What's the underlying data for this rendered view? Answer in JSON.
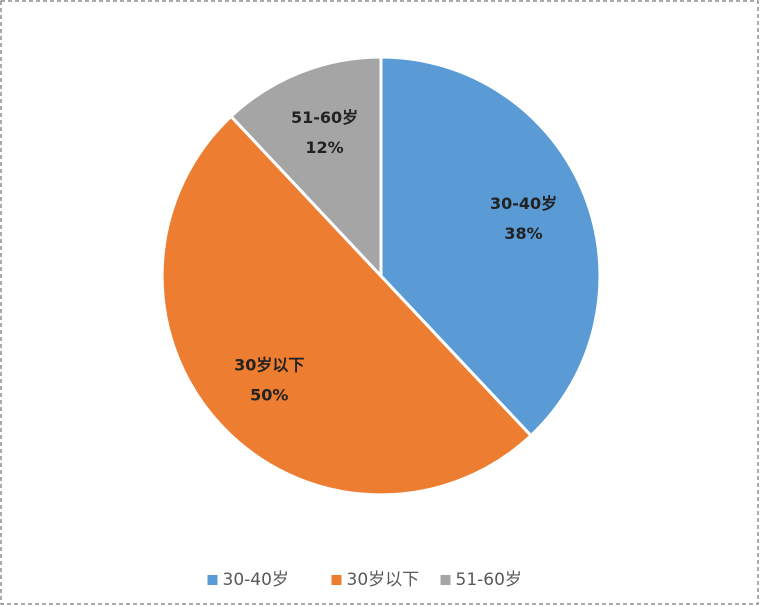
{
  "chart_data": {
    "type": "pie",
    "categories": [
      "30-40岁",
      "30岁以下",
      "51-60岁"
    ],
    "values": [
      38,
      50,
      12
    ],
    "value_labels": [
      "38%",
      "50%",
      "12%"
    ],
    "colors": [
      "#5b9bd5",
      "#ed7d31",
      "#a5a5a5"
    ],
    "legend": "bottom"
  }
}
